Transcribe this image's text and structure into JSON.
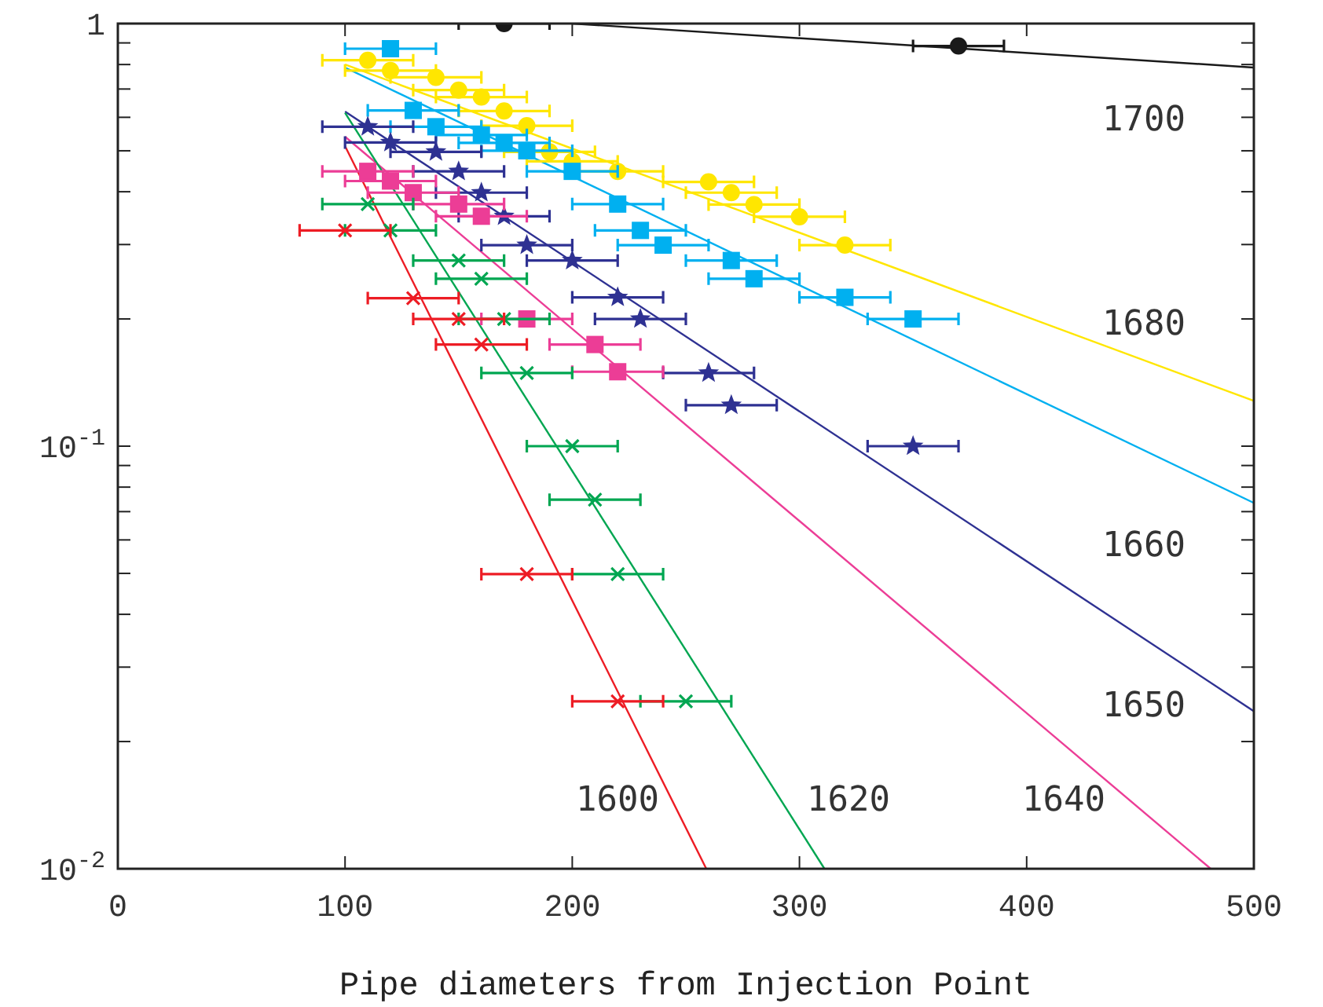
{
  "chart_data": {
    "type": "scatter",
    "xlabel": "Pipe diameters from Injection Point",
    "xlim": [
      0,
      500
    ],
    "xticks": [
      0,
      100,
      200,
      300,
      400,
      500
    ],
    "ylim": [
      0.01,
      1
    ],
    "log": true,
    "yticks": [
      {
        "value": 0.01,
        "label": "10$^{-2}$"
      },
      {
        "value": 0.02,
        "label": null
      },
      {
        "value": 0.03,
        "label": null
      },
      {
        "value": 0.04,
        "label": null
      },
      {
        "value": 0.05,
        "label": null
      },
      {
        "value": 0.06,
        "label": null
      },
      {
        "value": 0.07,
        "label": null
      },
      {
        "value": 0.08,
        "label": null
      },
      {
        "value": 0.09,
        "label": null
      },
      {
        "value": 0.1,
        "label": "10$^{-1}$"
      },
      {
        "value": 0.2,
        "label": null
      },
      {
        "value": 0.3,
        "label": null
      },
      {
        "value": 0.4,
        "label": null
      },
      {
        "value": 0.5,
        "label": null
      },
      {
        "value": 0.6,
        "label": null
      },
      {
        "value": 0.7,
        "label": null
      },
      {
        "value": 0.8,
        "label": null
      },
      {
        "value": 0.9,
        "label": null
      },
      1
    ],
    "series": [
      {
        "type": "line",
        "color": "#1a1a1a",
        "x": [
          200,
          500
        ],
        "values": [
          1,
          0.787
        ],
        "marker": "none"
      },
      {
        "type": "line",
        "color": "#ffe600",
        "x": [
          100,
          500
        ],
        "values": [
          0.8,
          0.128
        ],
        "marker": "none"
      },
      {
        "type": "line",
        "color": "#00b0f0",
        "x": [
          100,
          500
        ],
        "values": [
          0.787,
          0.0734
        ],
        "marker": "none"
      },
      {
        "type": "line",
        "color": "#2e3192",
        "x": [
          100,
          500
        ],
        "values": [
          0.619,
          0.0236
        ],
        "marker": "none"
      },
      {
        "type": "line",
        "color": "#ec3d96",
        "x": [
          100,
          481
        ],
        "values": [
          0.54,
          0.01
        ],
        "marker": "none"
      },
      {
        "type": "line",
        "color": "#00a651",
        "x": [
          100,
          311
        ],
        "values": [
          0.615,
          0.01
        ],
        "marker": "none"
      },
      {
        "type": "line",
        "color": "#ed1c24",
        "x": [
          100,
          259
        ],
        "values": [
          0.513,
          0.01
        ],
        "marker": "none"
      },
      {
        "color": "#1a1a1a",
        "marker": "circle",
        "x": [
          170,
          370
        ],
        "values": [
          1,
          0.885
        ],
        "xerrors": [
          20,
          20
        ]
      },
      {
        "color": "#ffe600",
        "marker": "circle",
        "x": [
          110,
          120,
          140,
          150,
          160,
          170,
          180,
          190,
          200,
          220,
          260,
          270,
          280,
          300,
          320
        ],
        "values": [
          0.819,
          0.774,
          0.746,
          0.696,
          0.67,
          0.621,
          0.573,
          0.497,
          0.472,
          0.447,
          0.422,
          0.398,
          0.373,
          0.349,
          0.299
        ],
        "xerrors": [
          20,
          20,
          20,
          20,
          20,
          20,
          20,
          20,
          20,
          20,
          20,
          20,
          20,
          20,
          20
        ]
      },
      {
        "color": "#00b0f0",
        "marker": "square",
        "x": [
          120,
          130,
          140,
          160,
          170,
          180,
          200,
          220,
          230,
          240,
          270,
          280,
          320,
          350
        ],
        "values": [
          0.872,
          0.623,
          0.57,
          0.545,
          0.522,
          0.5,
          0.447,
          0.374,
          0.324,
          0.299,
          0.275,
          0.249,
          0.225,
          0.2
        ],
        "xerrors": [
          20,
          20,
          20,
          20,
          20,
          20,
          20,
          20,
          20,
          20,
          20,
          20,
          20,
          20
        ]
      },
      {
        "color": "#2e3192",
        "marker": "star",
        "x": [
          110,
          120,
          140,
          150,
          160,
          170,
          180,
          200,
          220,
          230,
          260,
          270,
          350
        ],
        "values": [
          0.57,
          0.523,
          0.497,
          0.447,
          0.398,
          0.35,
          0.299,
          0.275,
          0.225,
          0.2,
          0.149,
          0.125,
          0.1
        ],
        "xerrors": [
          20,
          20,
          20,
          20,
          20,
          20,
          20,
          20,
          20,
          20,
          20,
          20,
          20
        ]
      },
      {
        "color": "#ec3d96",
        "marker": "square",
        "x": [
          110,
          120,
          130,
          150,
          160,
          180,
          210,
          220
        ],
        "values": [
          0.447,
          0.424,
          0.398,
          0.374,
          0.35,
          0.2,
          0.174,
          0.15
        ],
        "xerrors": [
          20,
          20,
          20,
          20,
          20,
          20,
          20,
          20
        ]
      },
      {
        "color": "#00a651",
        "marker": "cross",
        "x": [
          110,
          120,
          150,
          160,
          170,
          180,
          200,
          210,
          220,
          250
        ],
        "values": [
          0.374,
          0.324,
          0.275,
          0.249,
          0.2,
          0.149,
          0.1,
          0.0747,
          0.0498,
          0.0249
        ],
        "xerrors": [
          20,
          20,
          20,
          20,
          20,
          20,
          20,
          20,
          20,
          20
        ]
      },
      {
        "color": "#ed1c24",
        "marker": "cross",
        "x": [
          100,
          130,
          150,
          160,
          180,
          220
        ],
        "values": [
          0.324,
          0.224,
          0.2,
          0.174,
          0.0498,
          0.0249
        ],
        "xerrors": [
          20,
          20,
          20,
          20,
          20,
          20
        ]
      }
    ],
    "annotations": [
      "1700",
      "1680",
      "1660",
      "1650",
      "1600",
      "1620",
      "1640"
    ]
  }
}
